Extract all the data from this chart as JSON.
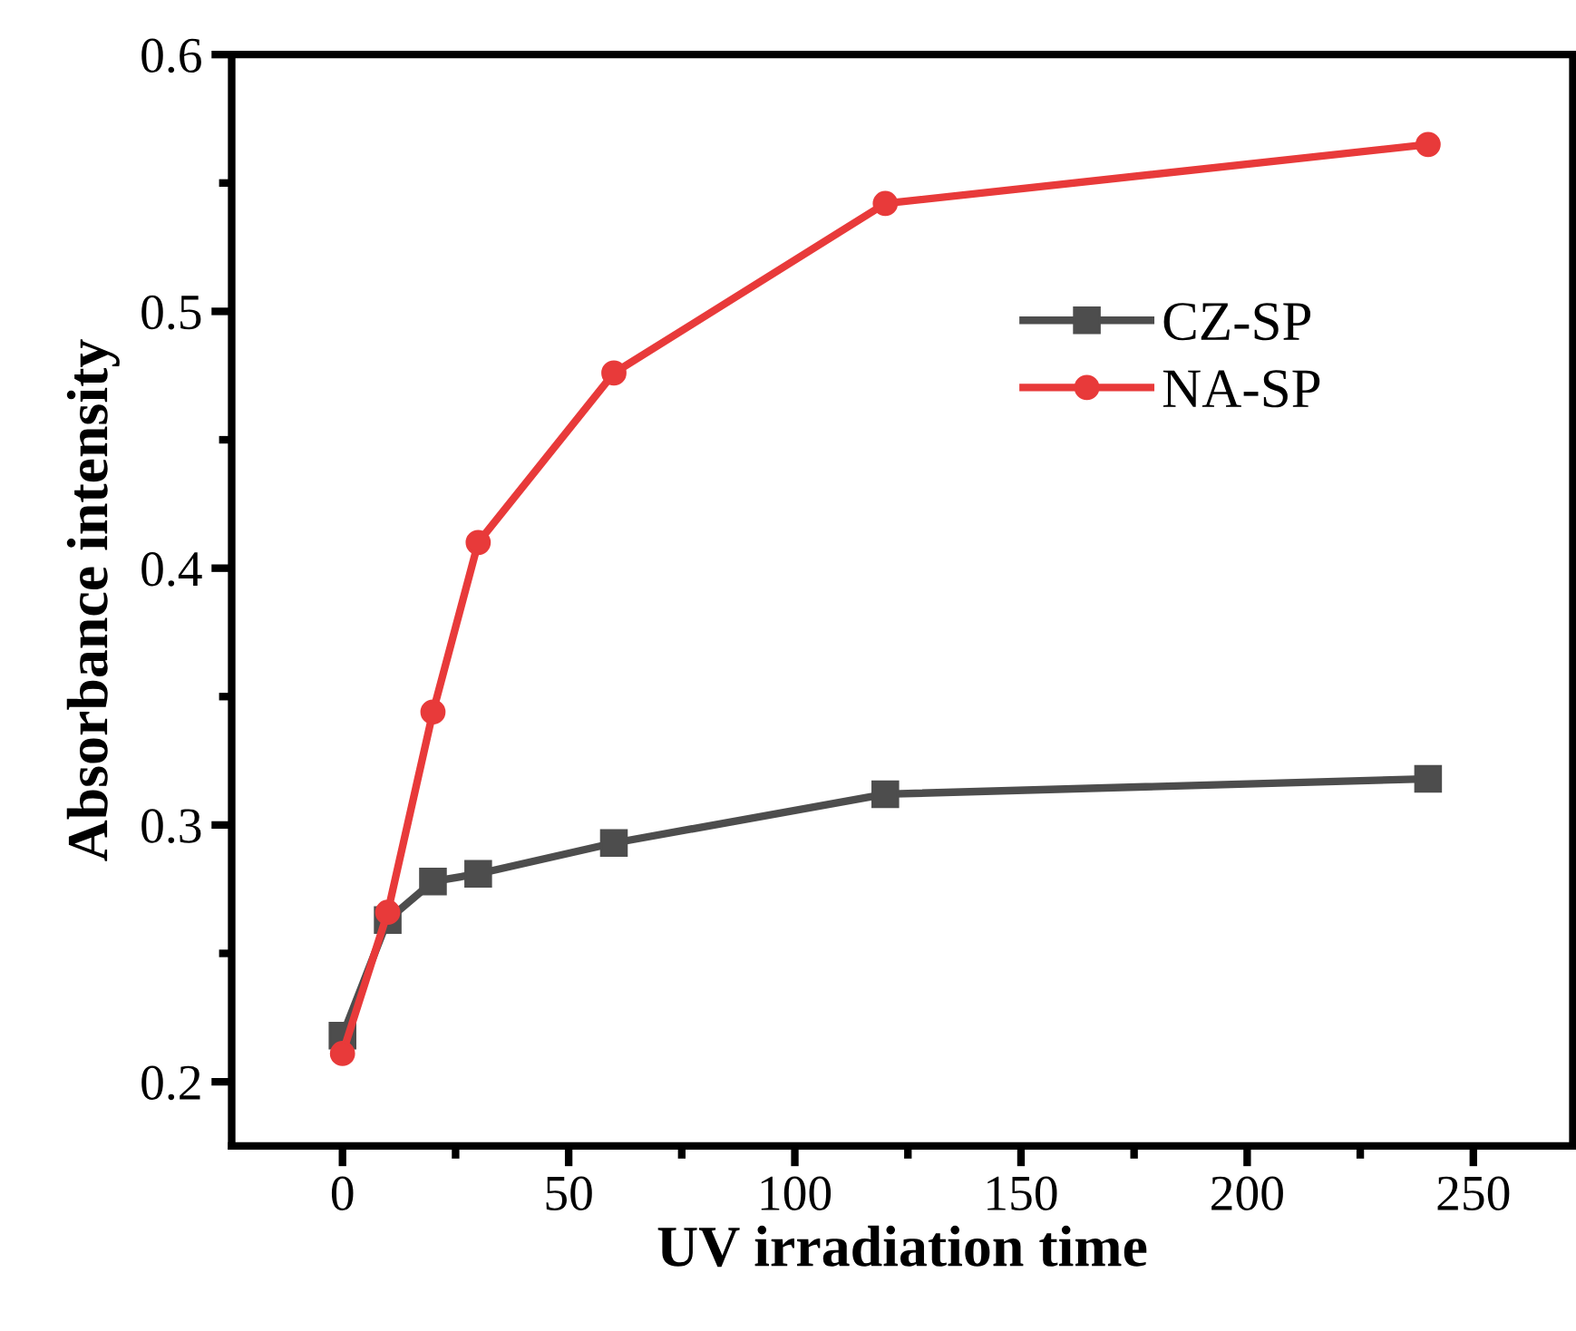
{
  "chart_data": {
    "type": "line",
    "xlabel": "UV irradiation time",
    "ylabel": "Absorbance intensity",
    "x": [
      0,
      10,
      20,
      30,
      60,
      120,
      240
    ],
    "series": [
      {
        "name": "CZ-SP",
        "color": "#4d4d4d",
        "marker": "square",
        "values": [
          0.218,
          0.263,
          0.278,
          0.281,
          0.293,
          0.312,
          0.318
        ]
      },
      {
        "name": "NA-SP",
        "color": "#e83a3a",
        "marker": "circle",
        "values": [
          0.211,
          0.266,
          0.344,
          0.41,
          0.476,
          0.542,
          0.565
        ]
      }
    ],
    "xlim": [
      -24.5,
      272
    ],
    "xticks": [
      0,
      50,
      100,
      150,
      200,
      250
    ],
    "ylim": [
      0.175,
      0.6
    ],
    "yticks": [
      {
        "value": 0.2,
        "label": "0.2"
      },
      {
        "value": 0.3,
        "label": "0.3"
      },
      {
        "value": 0.4,
        "label": "0.4"
      },
      {
        "value": 0.5,
        "label": "0.5"
      },
      {
        "value": 0.6,
        "label": "0.6"
      }
    ],
    "grid": false,
    "legend": "top right",
    "line_style": "solid"
  }
}
